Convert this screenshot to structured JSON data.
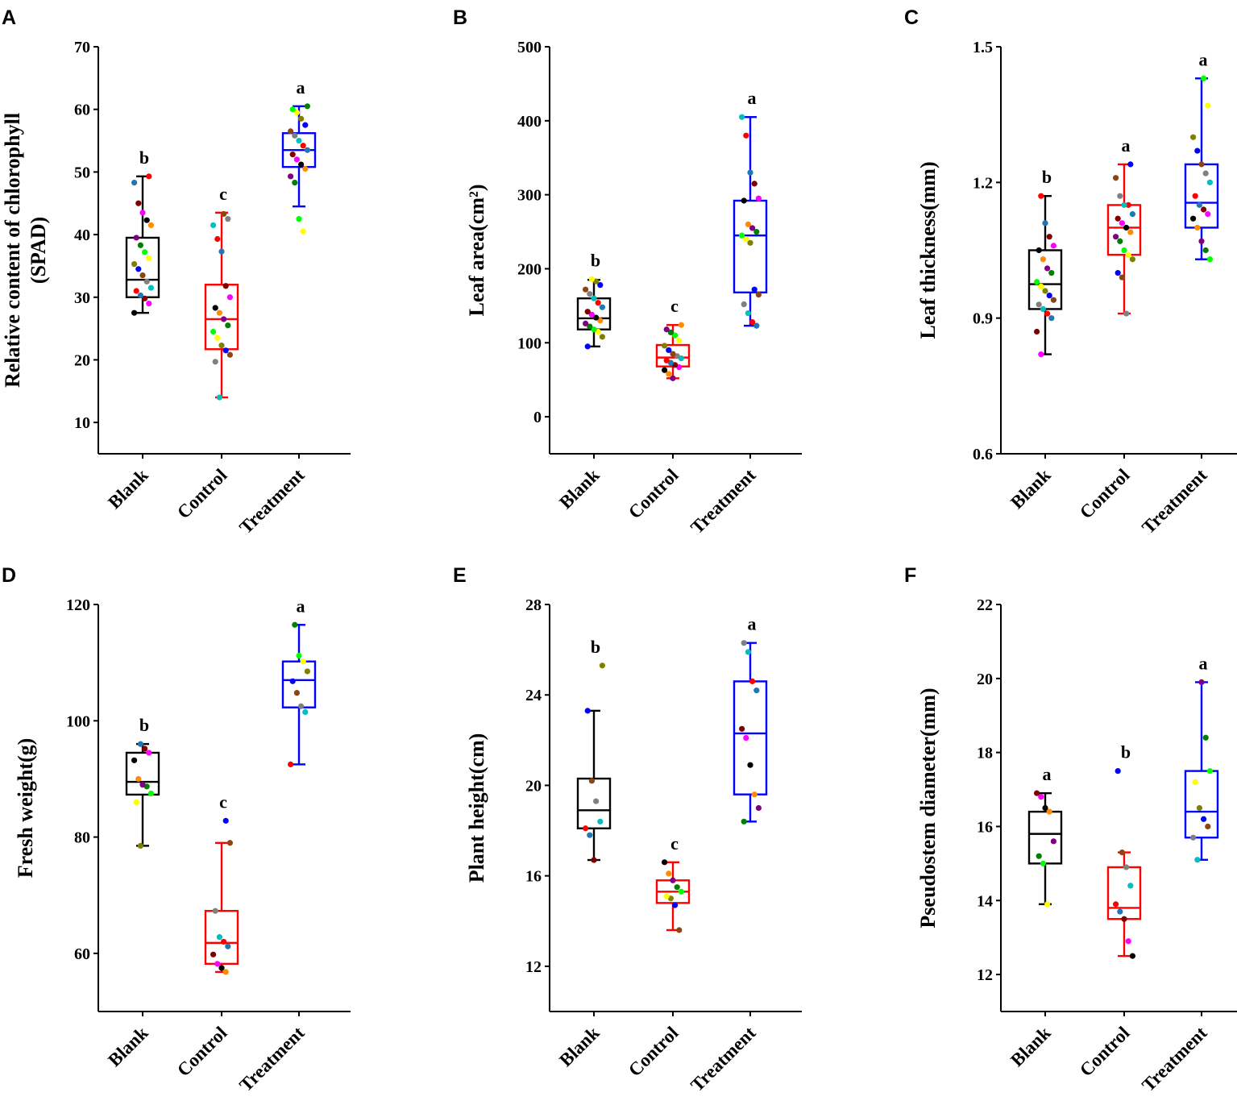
{
  "figure": {
    "palette": [
      "#000000",
      "#ff0000",
      "#0000ff",
      "#008000",
      "#ff00ff",
      "#00bfbf",
      "#808000",
      "#800080",
      "#800000",
      "#808080",
      "#ffff00",
      "#ff8c00",
      "#1f77b4",
      "#8b4513",
      "#00ff00"
    ],
    "group_colors": {
      "Blank": "#000000",
      "Control": "#ff0000",
      "Treatment": "#0000ff"
    }
  },
  "chart_data": [
    {
      "panel": "A",
      "type": "box",
      "ylabel_lines": [
        "Relative content of chlorophyll",
        "(SPAD)"
      ],
      "ylim": [
        5,
        70
      ],
      "yticks": [
        10,
        20,
        30,
        40,
        50,
        60,
        70
      ],
      "categories": [
        "Blank",
        "Control",
        "Treatment"
      ],
      "groups": [
        {
          "name": "Blank",
          "q1": 30,
          "median": 32.8,
          "q3": 39.5,
          "whisker_low": 27.5,
          "whisker_high": 49.3,
          "letter": "b",
          "points": [
            27.5,
            29,
            29.8,
            30.3,
            31,
            31.5,
            32.5,
            33.5,
            34.5,
            35.3,
            36.2,
            37.2,
            38.3,
            39.5,
            41.5,
            42.3,
            43.5,
            45,
            48.3,
            49.3
          ]
        },
        {
          "name": "Control",
          "q1": 21.7,
          "median": 26.5,
          "q3": 32,
          "whisker_low": 14,
          "whisker_high": 43.5,
          "letter": "c",
          "points": [
            14,
            19.7,
            20.8,
            21.5,
            22.3,
            23.5,
            24.5,
            25.5,
            26.5,
            27.5,
            28.3,
            30,
            31.8,
            37.3,
            39.3,
            41.5,
            42.5,
            43.3
          ]
        },
        {
          "name": "Treatment",
          "q1": 50.8,
          "median": 53.5,
          "q3": 56.2,
          "whisker_low": 44.5,
          "whisker_high": 60.5,
          "letter": "a",
          "points": [
            40.5,
            42.5,
            48.3,
            49.3,
            50.5,
            51.2,
            52,
            52.8,
            53.5,
            54.2,
            55,
            55.8,
            56.5,
            57.5,
            58.5,
            59.5,
            60,
            60.5
          ]
        }
      ]
    },
    {
      "panel": "B",
      "type": "box",
      "ylabel_lines": [
        "Leaf area(cm²)"
      ],
      "ylim": [
        -50,
        500
      ],
      "yticks": [
        0,
        100,
        200,
        300,
        400,
        500
      ],
      "categories": [
        "Blank",
        "Control",
        "Treatment"
      ],
      "groups": [
        {
          "name": "Blank",
          "q1": 118,
          "median": 133,
          "q3": 160,
          "whisker_low": 95,
          "whisker_high": 185,
          "letter": "b",
          "points": [
            95,
            108,
            115,
            118,
            122,
            126,
            130,
            134,
            138,
            142,
            148,
            154,
            160,
            166,
            172,
            178,
            183,
            186
          ]
        },
        {
          "name": "Control",
          "q1": 68,
          "median": 80,
          "q3": 97,
          "whisker_low": 52,
          "whisker_high": 124,
          "letter": "c",
          "points": [
            52,
            58,
            63,
            67,
            70,
            73,
            76,
            79,
            82,
            85,
            90,
            96,
            103,
            110,
            114,
            118,
            124
          ]
        },
        {
          "name": "Treatment",
          "q1": 168,
          "median": 245,
          "q3": 292,
          "whisker_low": 123,
          "whisker_high": 405,
          "letter": "a",
          "points": [
            123,
            128,
            140,
            152,
            165,
            172,
            235,
            240,
            245,
            250,
            255,
            260,
            292,
            295,
            315,
            330,
            380,
            405
          ]
        }
      ]
    },
    {
      "panel": "C",
      "type": "box",
      "ylabel_lines": [
        "Leaf  thickness(mm)"
      ],
      "ylim": [
        0.6,
        1.5
      ],
      "yticks": [
        0.6,
        0.9,
        1.2,
        1.5
      ],
      "categories": [
        "Blank",
        "Control",
        "Treatment"
      ],
      "groups": [
        {
          "name": "Blank",
          "q1": 0.92,
          "median": 0.975,
          "q3": 1.05,
          "whisker_low": 0.82,
          "whisker_high": 1.17,
          "letter": "b",
          "points": [
            0.82,
            0.87,
            0.9,
            0.91,
            0.92,
            0.93,
            0.94,
            0.95,
            0.96,
            0.97,
            0.98,
            1.0,
            1.01,
            1.03,
            1.05,
            1.06,
            1.08,
            1.11,
            1.17
          ]
        },
        {
          "name": "Control",
          "q1": 1.04,
          "median": 1.1,
          "q3": 1.15,
          "whisker_low": 0.91,
          "whisker_high": 1.24,
          "letter": "a",
          "points": [
            0.91,
            0.99,
            1.0,
            1.03,
            1.04,
            1.05,
            1.07,
            1.08,
            1.09,
            1.1,
            1.11,
            1.12,
            1.13,
            1.15,
            1.15,
            1.17,
            1.21,
            1.24
          ]
        },
        {
          "name": "Treatment",
          "q1": 1.1,
          "median": 1.155,
          "q3": 1.24,
          "whisker_low": 1.03,
          "whisker_high": 1.43,
          "letter": "a",
          "points": [
            1.03,
            1.05,
            1.07,
            1.1,
            1.12,
            1.13,
            1.14,
            1.15,
            1.17,
            1.2,
            1.22,
            1.24,
            1.27,
            1.3,
            1.37,
            1.43
          ]
        }
      ]
    },
    {
      "panel": "D",
      "type": "box",
      "ylabel_lines": [
        "Fresh weight(g)"
      ],
      "ylim": [
        50,
        120
      ],
      "yticks": [
        60,
        80,
        100,
        120
      ],
      "categories": [
        "Blank",
        "Control",
        "Treatment"
      ],
      "groups": [
        {
          "name": "Blank",
          "q1": 87.3,
          "median": 89.5,
          "q3": 94.5,
          "whisker_low": 78.5,
          "whisker_high": 96,
          "letter": "b",
          "points": [
            78.5,
            86,
            87.5,
            88.7,
            89,
            90,
            93.2,
            94.5,
            95.2,
            96
          ]
        },
        {
          "name": "Control",
          "q1": 58.2,
          "median": 61.8,
          "q3": 67.3,
          "whisker_low": 56.8,
          "whisker_high": 79,
          "letter": "c",
          "points": [
            56.8,
            57.5,
            58.2,
            59.8,
            61.2,
            62,
            62.8,
            67.3,
            79,
            82.8
          ]
        },
        {
          "name": "Treatment",
          "q1": 102.3,
          "median": 107,
          "q3": 110.2,
          "whisker_low": 92.5,
          "whisker_high": 116.5,
          "letter": "a",
          "points": [
            92.5,
            101.5,
            102.5,
            104.8,
            106.8,
            108.5,
            110.2,
            111.2,
            116.5
          ]
        }
      ]
    },
    {
      "panel": "E",
      "type": "box",
      "ylabel_lines": [
        "Plant height(cm)"
      ],
      "ylim": [
        10,
        28
      ],
      "yticks": [
        12,
        16,
        20,
        24,
        28
      ],
      "categories": [
        "Blank",
        "Control",
        "Treatment"
      ],
      "groups": [
        {
          "name": "Blank",
          "q1": 18.1,
          "median": 18.9,
          "q3": 20.3,
          "whisker_low": 16.7,
          "whisker_high": 23.3,
          "letter": "b",
          "points": [
            16.7,
            17.8,
            18.1,
            18.4,
            19.3,
            20.2,
            23.3,
            25.3
          ]
        },
        {
          "name": "Control",
          "q1": 14.8,
          "median": 15.3,
          "q3": 15.8,
          "whisker_low": 13.6,
          "whisker_high": 16.6,
          "letter": "c",
          "points": [
            13.6,
            14.7,
            15,
            15.1,
            15.3,
            15.5,
            15.8,
            16.1,
            16.6
          ]
        },
        {
          "name": "Treatment",
          "q1": 19.6,
          "median": 22.3,
          "q3": 24.6,
          "whisker_low": 18.4,
          "whisker_high": 26.3,
          "letter": "a",
          "points": [
            18.4,
            19,
            19.6,
            20.9,
            22.1,
            22.5,
            24.2,
            24.6,
            25.9,
            26.3
          ]
        }
      ]
    },
    {
      "panel": "F",
      "type": "box",
      "ylabel_lines": [
        "Pseudostem diameter(mm)"
      ],
      "ylim": [
        11,
        22
      ],
      "yticks": [
        12,
        14,
        16,
        18,
        20,
        22
      ],
      "categories": [
        "Blank",
        "Control",
        "Treatment"
      ],
      "groups": [
        {
          "name": "Blank",
          "q1": 15,
          "median": 15.8,
          "q3": 16.4,
          "whisker_low": 13.9,
          "whisker_high": 16.9,
          "letter": "a",
          "points": [
            13.9,
            15,
            15.2,
            15.6,
            16.4,
            16.5,
            16.8,
            16.9
          ]
        },
        {
          "name": "Control",
          "q1": 13.5,
          "median": 13.8,
          "q3": 14.9,
          "whisker_low": 12.5,
          "whisker_high": 15.3,
          "letter": "b",
          "points": [
            12.5,
            12.9,
            13.5,
            13.7,
            13.9,
            14.4,
            14.9,
            15.3,
            17.5
          ]
        },
        {
          "name": "Treatment",
          "q1": 15.7,
          "median": 16.4,
          "q3": 17.5,
          "whisker_low": 15.1,
          "whisker_high": 19.9,
          "letter": "a",
          "points": [
            15.1,
            15.7,
            16,
            16.2,
            16.5,
            17.2,
            17.5,
            18.4,
            19.9
          ]
        }
      ]
    }
  ]
}
